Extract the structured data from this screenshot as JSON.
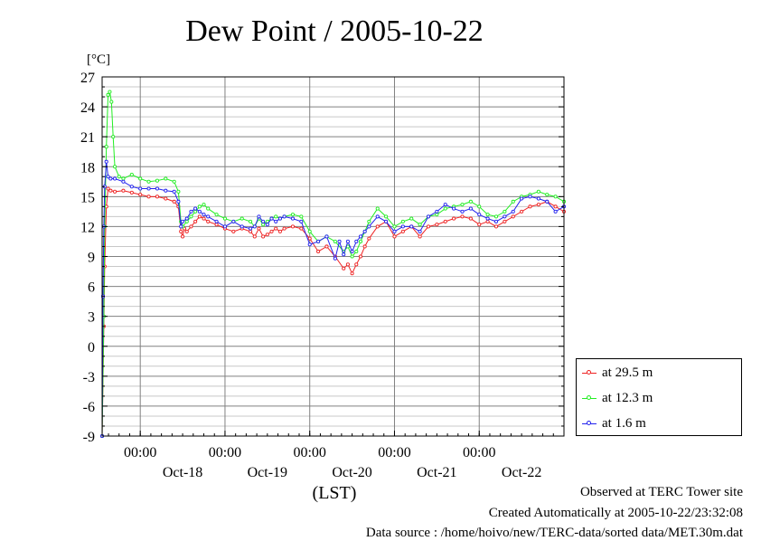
{
  "chart_data": {
    "type": "line",
    "title": "Dew Point / 2005-10-22",
    "ylabel": "[°C]",
    "xlabel": "(LST)",
    "ylim": [
      -9,
      27
    ],
    "yticks": [
      27,
      24,
      21,
      18,
      15,
      12,
      9,
      6,
      3,
      0,
      -3,
      -6,
      -9
    ],
    "x_unit": "days since 2005-10-17 00:00",
    "xlim": [
      0.55,
      6.0
    ],
    "x_time_ticks": [
      {
        "x": 1,
        "label": "00:00"
      },
      {
        "x": 2,
        "label": "00:00"
      },
      {
        "x": 3,
        "label": "00:00"
      },
      {
        "x": 4,
        "label": "00:00"
      },
      {
        "x": 5,
        "label": "00:00"
      }
    ],
    "x_date_ticks": [
      {
        "x": 1.5,
        "label": "Oct-18"
      },
      {
        "x": 2.5,
        "label": "Oct-19"
      },
      {
        "x": 3.5,
        "label": "Oct-20"
      },
      {
        "x": 4.5,
        "label": "Oct-21"
      },
      {
        "x": 5.5,
        "label": "Oct-22"
      }
    ],
    "grid": true,
    "legend_position": "bottom-right outside",
    "series": [
      {
        "name": "at 29.5 m",
        "color": "#ee2222",
        "x": [
          0.55,
          0.57,
          0.58,
          0.6,
          0.62,
          0.65,
          0.7,
          0.8,
          0.9,
          1.0,
          1.1,
          1.2,
          1.3,
          1.4,
          1.45,
          1.48,
          1.5,
          1.52,
          1.55,
          1.6,
          1.65,
          1.7,
          1.75,
          1.8,
          1.9,
          2.0,
          2.1,
          2.2,
          2.3,
          2.35,
          2.4,
          2.45,
          2.5,
          2.55,
          2.6,
          2.65,
          2.7,
          2.8,
          2.9,
          3.0,
          3.1,
          3.2,
          3.3,
          3.4,
          3.45,
          3.5,
          3.55,
          3.6,
          3.65,
          3.7,
          3.8,
          3.9,
          4.0,
          4.1,
          4.2,
          4.3,
          4.4,
          4.5,
          4.6,
          4.7,
          4.8,
          4.9,
          5.0,
          5.1,
          5.2,
          5.3,
          5.4,
          5.5,
          5.6,
          5.7,
          5.8,
          5.9,
          6.0
        ],
        "y": [
          -9,
          2,
          8,
          14,
          15.8,
          15.6,
          15.5,
          15.6,
          15.4,
          15.2,
          15.0,
          15.0,
          14.8,
          14.5,
          14.0,
          11.5,
          11.0,
          11.8,
          11.5,
          12.0,
          12.5,
          13.0,
          12.8,
          12.5,
          12.2,
          11.8,
          11.5,
          11.8,
          11.5,
          11.0,
          11.8,
          11.0,
          11.2,
          11.5,
          11.8,
          11.5,
          11.8,
          12.0,
          11.8,
          10.8,
          9.5,
          10.0,
          9.0,
          7.8,
          8.2,
          7.3,
          8.2,
          9.0,
          10.0,
          10.8,
          12.0,
          12.5,
          11.0,
          11.5,
          12.0,
          11.0,
          12.0,
          12.2,
          12.5,
          12.8,
          13.0,
          12.8,
          12.2,
          12.5,
          12.0,
          12.5,
          13.0,
          13.5,
          14.0,
          14.2,
          14.5,
          14.0,
          13.5
        ]
      },
      {
        "name": "at 12.3 m",
        "color": "#22ee22",
        "x": [
          0.55,
          0.57,
          0.58,
          0.6,
          0.62,
          0.64,
          0.66,
          0.68,
          0.7,
          0.75,
          0.8,
          0.9,
          1.0,
          1.1,
          1.2,
          1.3,
          1.4,
          1.45,
          1.48,
          1.5,
          1.55,
          1.6,
          1.65,
          1.7,
          1.75,
          1.8,
          1.9,
          2.0,
          2.1,
          2.2,
          2.3,
          2.35,
          2.4,
          2.45,
          2.5,
          2.55,
          2.6,
          2.65,
          2.7,
          2.8,
          2.9,
          3.0,
          3.1,
          3.2,
          3.3,
          3.4,
          3.45,
          3.5,
          3.55,
          3.6,
          3.65,
          3.7,
          3.8,
          3.9,
          4.0,
          4.1,
          4.2,
          4.3,
          4.4,
          4.5,
          4.6,
          4.7,
          4.8,
          4.9,
          5.0,
          5.1,
          5.2,
          5.3,
          5.4,
          5.5,
          5.6,
          5.7,
          5.8,
          5.9,
          6.0
        ],
        "y": [
          -9,
          3,
          12,
          20,
          25.2,
          25.5,
          24.5,
          21,
          18,
          17,
          16.8,
          17.2,
          16.8,
          16.5,
          16.6,
          16.8,
          16.5,
          15.5,
          12.5,
          12.0,
          12.5,
          13.0,
          13.5,
          14.0,
          14.2,
          13.8,
          13.2,
          12.8,
          12.5,
          12.8,
          12.5,
          12.0,
          12.8,
          12.2,
          12.5,
          12.8,
          13.0,
          12.8,
          13.0,
          13.2,
          13.0,
          11.5,
          10.5,
          11.0,
          10.5,
          9.5,
          10.0,
          9.0,
          9.5,
          10.5,
          11.5,
          12.5,
          13.8,
          13.0,
          12.0,
          12.5,
          12.8,
          12.2,
          13.0,
          13.2,
          13.8,
          14.0,
          14.2,
          14.5,
          14.0,
          13.2,
          13.0,
          13.5,
          14.5,
          15.0,
          15.2,
          15.5,
          15.2,
          15.0,
          14.5
        ]
      },
      {
        "name": "at 1.6 m",
        "color": "#2222ee",
        "x": [
          0.55,
          0.56,
          0.57,
          0.58,
          0.6,
          0.62,
          0.65,
          0.7,
          0.8,
          0.9,
          1.0,
          1.1,
          1.2,
          1.3,
          1.4,
          1.45,
          1.48,
          1.5,
          1.55,
          1.6,
          1.65,
          1.7,
          1.75,
          1.8,
          1.9,
          2.0,
          2.1,
          2.2,
          2.3,
          2.35,
          2.4,
          2.45,
          2.5,
          2.55,
          2.6,
          2.65,
          2.7,
          2.8,
          2.9,
          3.0,
          3.1,
          3.2,
          3.3,
          3.35,
          3.4,
          3.45,
          3.5,
          3.55,
          3.6,
          3.65,
          3.7,
          3.8,
          3.9,
          4.0,
          4.1,
          4.2,
          4.3,
          4.4,
          4.5,
          4.6,
          4.7,
          4.8,
          4.9,
          5.0,
          5.1,
          5.2,
          5.3,
          5.4,
          5.5,
          5.6,
          5.7,
          5.8,
          5.9,
          6.0
        ],
        "y": [
          -9,
          5,
          12,
          16,
          18.5,
          17.0,
          16.8,
          16.8,
          16.5,
          16.0,
          15.8,
          15.8,
          15.8,
          15.6,
          15.5,
          14.5,
          12.0,
          12.5,
          12.8,
          13.5,
          13.8,
          13.5,
          13.2,
          13.0,
          12.5,
          12.0,
          12.5,
          12.0,
          11.8,
          12.0,
          13.0,
          12.5,
          12.2,
          12.8,
          12.5,
          12.8,
          13.0,
          12.8,
          12.5,
          10.2,
          10.5,
          11.0,
          8.8,
          10.5,
          9.2,
          10.5,
          9.5,
          10.5,
          11.0,
          11.5,
          12.0,
          13.0,
          12.5,
          11.5,
          12.0,
          12.0,
          11.5,
          13.0,
          13.5,
          14.2,
          13.8,
          13.5,
          13.8,
          13.2,
          12.8,
          12.5,
          13.0,
          13.5,
          14.8,
          15.0,
          14.8,
          14.5,
          13.5,
          14.0
        ]
      }
    ]
  },
  "footer": {
    "observed": "Observed at TERC Tower site",
    "created": "Created Automatically at 2005-10-22/23:32:08",
    "source": "Data source : /home/hoivo/new/TERC-data/sorted  data/MET.30m.dat"
  }
}
